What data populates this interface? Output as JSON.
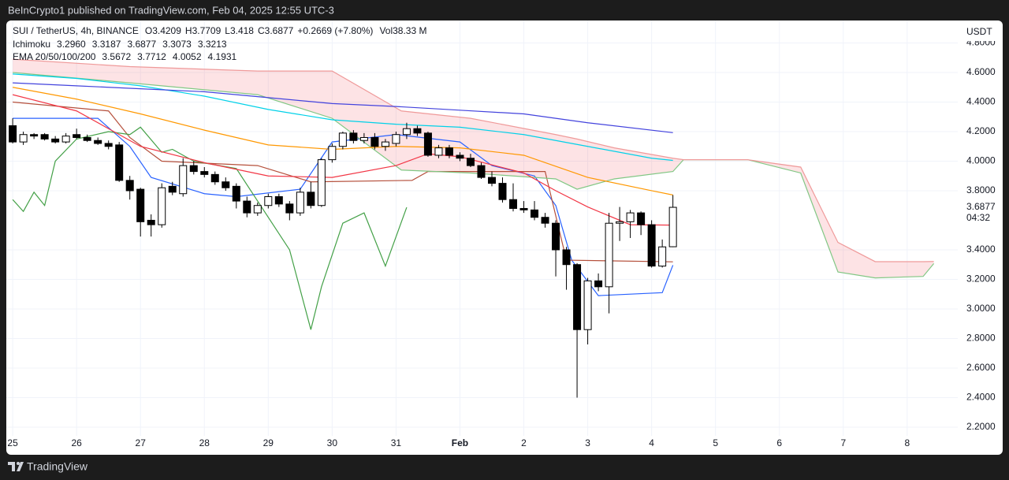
{
  "header": {
    "published": "BeInCrypto1 published on TradingView.com, Feb 04, 2025 12:55 UTC-3"
  },
  "footer": {
    "brand": "TradingView"
  },
  "chart_data": {
    "type": "candlestick",
    "symbol": "SUI / TetherUS, 4h, BINANCE",
    "ohlc_labels": [
      "O",
      "H",
      "L",
      "C"
    ],
    "change": "+0.2669 (+7.80%)",
    "volume_label": "Vol",
    "volume": "38.33 M",
    "currency": "USDT",
    "countdown": "04:32",
    "up_color": "#ffffff",
    "down_color": "#000000",
    "wick_color": "#000000",
    "grid": true,
    "x": [
      0,
      4,
      8,
      12,
      16,
      20,
      24,
      28,
      32,
      36,
      40,
      44,
      48,
      52,
      56,
      60,
      64,
      68,
      72,
      76,
      80,
      84,
      88,
      92,
      96,
      100,
      104,
      108,
      112,
      116,
      120,
      124,
      128,
      132,
      136,
      140,
      144,
      148,
      152,
      156,
      160,
      164,
      168,
      172,
      176,
      180,
      184,
      188,
      192,
      196,
      200,
      204,
      208,
      212,
      216,
      220,
      224,
      228,
      232,
      236,
      240,
      244,
      248
    ],
    "open": [
      4.24,
      4.13,
      4.18,
      4.18,
      4.15,
      4.13,
      4.18,
      4.16,
      4.14,
      4.12,
      4.11,
      3.87,
      3.81,
      3.6,
      3.57,
      3.83,
      3.78,
      3.97,
      3.93,
      3.91,
      3.86,
      3.83,
      3.73,
      3.65,
      3.7,
      3.76,
      3.71,
      3.65,
      3.79,
      3.7,
      4.01,
      4.1,
      4.19,
      4.14,
      4.16,
      4.1,
      4.12,
      4.18,
      4.22,
      4.19,
      4.04,
      4.09,
      4.04,
      4.02,
      3.97,
      3.89,
      3.85,
      3.74,
      3.68,
      3.67,
      3.62,
      3.58,
      3.4,
      3.3,
      2.86,
      3.19,
      3.15,
      3.58,
      3.59,
      3.65,
      3.57,
      3.29,
      3.4209
    ],
    "high": [
      4.29,
      4.2,
      4.19,
      4.19,
      4.17,
      4.19,
      4.22,
      4.18,
      4.16,
      4.14,
      4.13,
      3.9,
      3.82,
      3.64,
      3.85,
      3.86,
      4.02,
      4.0,
      3.96,
      3.93,
      3.89,
      3.85,
      3.76,
      3.72,
      3.78,
      3.78,
      3.73,
      3.82,
      3.86,
      4.02,
      4.12,
      4.2,
      4.21,
      4.19,
      4.19,
      4.15,
      4.2,
      4.26,
      4.24,
      4.2,
      4.11,
      4.11,
      4.06,
      4.05,
      3.99,
      3.93,
      3.89,
      3.85,
      3.73,
      3.73,
      3.65,
      3.6,
      3.42,
      3.31,
      3.21,
      3.24,
      3.65,
      3.69,
      3.67,
      3.66,
      3.6,
      3.47,
      3.7709
    ],
    "low": [
      4.12,
      4.11,
      4.15,
      4.14,
      4.12,
      4.12,
      4.15,
      4.13,
      4.11,
      4.08,
      3.86,
      3.74,
      3.49,
      3.49,
      3.55,
      3.77,
      3.76,
      3.91,
      3.89,
      3.84,
      3.8,
      3.68,
      3.62,
      3.63,
      3.68,
      3.69,
      3.6,
      3.63,
      3.68,
      3.69,
      3.99,
      4.08,
      4.12,
      4.12,
      4.08,
      4.07,
      4.1,
      4.15,
      4.17,
      4.03,
      4.02,
      4.02,
      4.0,
      3.96,
      3.88,
      3.83,
      3.72,
      3.66,
      3.65,
      3.6,
      3.55,
      3.22,
      3.13,
      2.4,
      2.76,
      3.12,
      2.97,
      3.46,
      3.48,
      3.5,
      3.28,
      3.28,
      3.418
    ],
    "close": [
      4.13,
      4.18,
      4.17,
      4.15,
      4.13,
      4.17,
      4.16,
      4.14,
      4.12,
      4.1,
      3.87,
      3.8,
      3.59,
      3.57,
      3.82,
      3.79,
      3.97,
      3.93,
      3.91,
      3.86,
      3.82,
      3.73,
      3.65,
      3.7,
      3.76,
      3.71,
      3.65,
      3.79,
      3.7,
      4.01,
      4.1,
      4.19,
      4.14,
      4.16,
      4.1,
      4.13,
      4.18,
      4.22,
      4.19,
      4.04,
      4.09,
      4.04,
      4.02,
      3.97,
      3.89,
      3.85,
      3.74,
      3.68,
      3.67,
      3.62,
      3.58,
      3.4,
      3.3,
      2.86,
      3.19,
      3.15,
      3.58,
      3.59,
      3.65,
      3.57,
      3.29,
      3.42,
      3.6877
    ],
    "xlim": [
      -2.4,
      355
    ],
    "xticks": [
      {
        "value": 0,
        "label": "25"
      },
      {
        "value": 24,
        "label": "26"
      },
      {
        "value": 48,
        "label": "27"
      },
      {
        "value": 72,
        "label": "28"
      },
      {
        "value": 96,
        "label": "29"
      },
      {
        "value": 120,
        "label": "30"
      },
      {
        "value": 144,
        "label": "31"
      },
      {
        "value": 168,
        "label": "Feb"
      },
      {
        "value": 192,
        "label": "2"
      },
      {
        "value": 216,
        "label": "3"
      },
      {
        "value": 240,
        "label": "4"
      },
      {
        "value": 264,
        "label": "5"
      },
      {
        "value": 288,
        "label": "6"
      },
      {
        "value": 312,
        "label": "7"
      },
      {
        "value": 336,
        "label": "8"
      }
    ],
    "ylim": [
      2.141,
      4.952
    ],
    "yticks": [
      {
        "value": 4.8,
        "label": "4.8000"
      },
      {
        "value": 4.6,
        "label": "4.6000"
      },
      {
        "value": 4.4,
        "label": "4.4000"
      },
      {
        "value": 4.2,
        "label": "4.2000"
      },
      {
        "value": 4.0,
        "label": "4.0000"
      },
      {
        "value": 3.8,
        "label": "3.8000"
      },
      {
        "value": 3.4,
        "label": "3.4000"
      },
      {
        "value": 3.2,
        "label": "3.2000"
      },
      {
        "value": 3.0,
        "label": "3.0000"
      },
      {
        "value": 2.8,
        "label": "2.8000"
      },
      {
        "value": 2.6,
        "label": "2.6000"
      },
      {
        "value": 2.4,
        "label": "2.4000"
      },
      {
        "value": 2.2,
        "label": "2.2000"
      }
    ],
    "indicators": [
      {
        "title": "Ichimoku",
        "cloud": [
          3,
          4
        ],
        "cloud_color": "rgba(242,54,69,0.14)",
        "lines": [
          {
            "color": "#2962ff",
            "legend_label": "3.2960",
            "x": [
              0,
              32,
              44,
              52,
              72,
              84,
              108,
              120,
              144,
              168,
              180,
              196,
              204,
              210,
              220,
              244,
              248
            ],
            "values": [
              4.29,
              4.29,
              4.1,
              3.89,
              3.78,
              3.76,
              3.81,
              4.13,
              4.18,
              4.13,
              3.97,
              3.9,
              3.7,
              3.33,
              3.09,
              3.11,
              3.296
            ]
          },
          {
            "color": "#b5503c",
            "legend_label": "3.3187",
            "x": [
              0,
              36,
              44,
              56,
              92,
              112,
              150,
              156,
              200,
              208,
              248
            ],
            "values": [
              4.4,
              4.34,
              4.16,
              4.0,
              3.97,
              3.86,
              3.87,
              3.93,
              3.93,
              3.33,
              3.3187
            ]
          },
          {
            "color": "#43a047",
            "legend_label": "3.6877",
            "x": [
              0,
              4,
              8,
              12,
              16,
              24,
              36,
              44,
              48,
              56,
              60,
              68,
              84,
              96,
              104,
              112,
              116,
              124,
              132,
              140,
              148
            ],
            "values": [
              3.74,
              3.66,
              3.79,
              3.7,
              4.0,
              4.15,
              4.2,
              4.18,
              4.23,
              4.06,
              4.08,
              4.0,
              3.95,
              3.62,
              3.4,
              2.86,
              3.15,
              3.58,
              3.65,
              3.29,
              3.6877
            ]
          },
          {
            "color": "#81c784",
            "legend_label": "3.3073",
            "x": [
              0,
              44,
              92,
              120,
              146,
              172,
              204,
              212,
              226,
              248,
              252,
              276,
              296,
              310,
              324,
              342,
              346
            ],
            "values": [
              4.6,
              4.53,
              4.45,
              4.29,
              3.94,
              3.92,
              3.88,
              3.81,
              3.88,
              3.93,
              4.01,
              4.01,
              3.92,
              3.25,
              3.21,
              3.22,
              3.3073
            ]
          },
          {
            "color": "#ef9a9a",
            "legend_label": "3.3213",
            "x": [
              0,
              44,
              92,
              120,
              146,
              172,
              204,
              212,
              226,
              248,
              252,
              276,
              296,
              310,
              324,
              342,
              346
            ],
            "values": [
              4.69,
              4.64,
              4.61,
              4.61,
              4.34,
              4.29,
              4.18,
              4.15,
              4.09,
              4.02,
              4.01,
              4.01,
              3.96,
              3.45,
              3.32,
              3.32,
              3.3213
            ]
          }
        ]
      },
      {
        "title": "EMA 20/50/100/200",
        "lines": [
          {
            "color": "#f23645",
            "legend_label": "3.5672",
            "x": [
              0,
              24,
              48,
              72,
              96,
              120,
              144,
              156,
              168,
              192,
              204,
              216,
              232,
              248
            ],
            "values": [
              4.45,
              4.34,
              4.1,
              3.99,
              3.9,
              3.89,
              3.97,
              4.05,
              4.03,
              3.92,
              3.8,
              3.69,
              3.57,
              3.5672
            ]
          },
          {
            "color": "#ff9800",
            "legend_label": "3.7712",
            "x": [
              0,
              24,
              48,
              72,
              96,
              120,
              144,
              168,
              192,
              216,
              240,
              248
            ],
            "values": [
              4.5,
              4.42,
              4.32,
              4.21,
              4.11,
              4.08,
              4.1,
              4.09,
              4.04,
              3.89,
              3.8,
              3.7712
            ]
          },
          {
            "color": "#00d1e8",
            "legend_label": "4.0052",
            "x": [
              0,
              24,
              48,
              72,
              96,
              120,
              144,
              168,
              192,
              216,
              240,
              248
            ],
            "values": [
              4.59,
              4.56,
              4.51,
              4.44,
              4.35,
              4.28,
              4.25,
              4.23,
              4.18,
              4.1,
              4.02,
              4.0052
            ]
          },
          {
            "color": "#4343dd",
            "legend_label": "4.1931",
            "x": [
              0,
              24,
              48,
              72,
              96,
              120,
              144,
              168,
              192,
              216,
              248
            ],
            "values": [
              4.53,
              4.51,
              4.49,
              4.47,
              4.43,
              4.39,
              4.37,
              4.345,
              4.32,
              4.26,
              4.193
            ]
          }
        ]
      }
    ]
  }
}
